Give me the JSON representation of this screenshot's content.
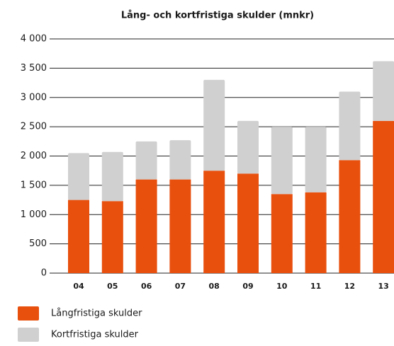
{
  "chart_data": {
    "type": "stacked-bar",
    "title": "Lång- och kortfristiga skulder (mnkr)",
    "categories": [
      "04",
      "05",
      "06",
      "07",
      "08",
      "09",
      "10",
      "11",
      "12",
      "13"
    ],
    "series": [
      {
        "name": "Långfristiga skulder",
        "color": "#e8500e",
        "values": [
          1250,
          1230,
          1600,
          1600,
          1750,
          1700,
          1350,
          1380,
          1930,
          2600
        ]
      },
      {
        "name": "Kortfristiga skulder",
        "color": "#d0d0d0",
        "values": [
          800,
          840,
          650,
          670,
          1550,
          900,
          1150,
          1120,
          1170,
          1020
        ]
      }
    ],
    "ylim": [
      0,
      4000
    ],
    "yticks": [
      0,
      500,
      {
        "value": 1000,
        "label": "1 000"
      },
      {
        "value": 1500,
        "label": "1 500"
      },
      {
        "value": 2000,
        "label": "2 000"
      },
      {
        "value": 2500,
        "label": "2 500"
      },
      {
        "value": 3000,
        "label": "3 000"
      },
      {
        "value": 3500,
        "label": "3 500"
      },
      {
        "value": 4000,
        "label": "4 000"
      }
    ],
    "grid": true
  }
}
